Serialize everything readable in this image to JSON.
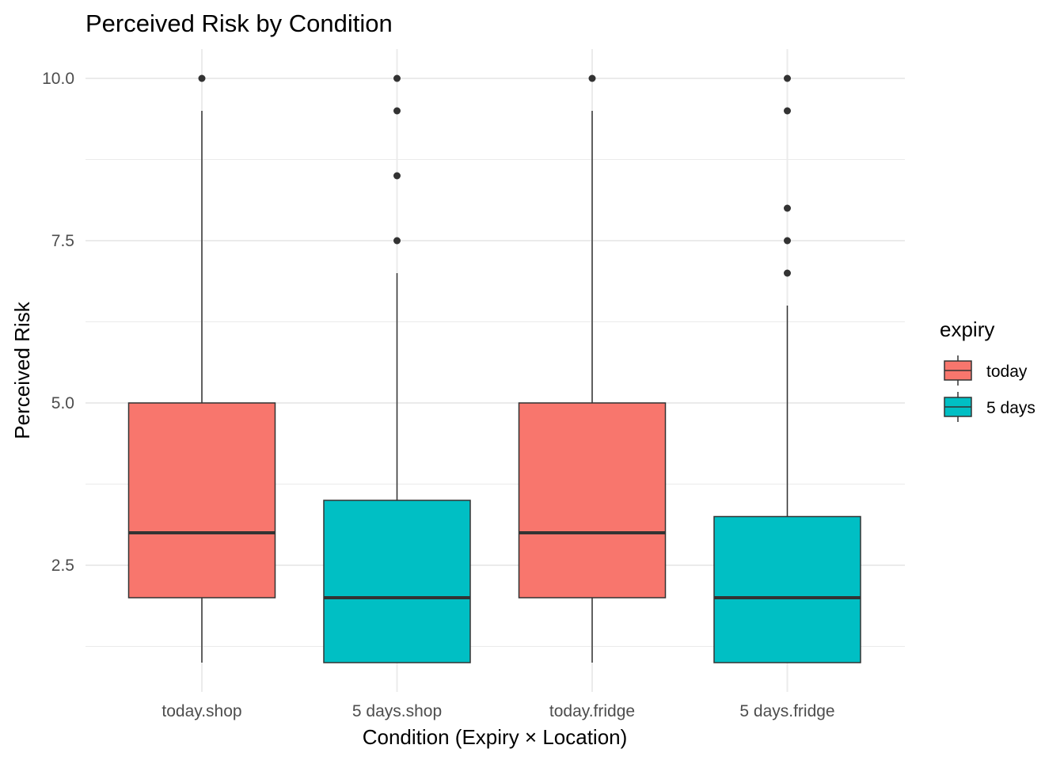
{
  "chart_data": {
    "type": "boxplot",
    "title": "Perceived Risk by Condition",
    "xlabel": "Condition (Expiry × Location)",
    "ylabel": "Perceived Risk",
    "ylim": [
      0.8,
      10.45
    ],
    "yticks": [
      2.5,
      5.0,
      7.5,
      10.0
    ],
    "ytick_labels": [
      "2.5",
      "5.0",
      "7.5",
      "10.0"
    ],
    "y_minor_gridlines": [
      1.25,
      3.75,
      6.25,
      8.75
    ],
    "grid": true,
    "legend": {
      "title": "expiry",
      "placement": "right",
      "entries": [
        {
          "label": "today",
          "color": "#F8766D"
        },
        {
          "label": "5 days",
          "color": "#00BFC4"
        }
      ]
    },
    "categories": [
      "today.shop",
      "5 days.shop",
      "today.fridge",
      "5 days.fridge"
    ],
    "boxes": [
      {
        "category": "today.shop",
        "group": "today",
        "whisker_low": 1.0,
        "q1": 2.0,
        "median": 3.0,
        "q3": 5.0,
        "whisker_high": 9.5,
        "outliers": [
          10.0
        ]
      },
      {
        "category": "5 days.shop",
        "group": "5 days",
        "whisker_low": 1.0,
        "q1": 1.0,
        "median": 2.0,
        "q3": 3.5,
        "whisker_high": 7.0,
        "outliers": [
          7.5,
          8.5,
          9.5,
          10.0
        ]
      },
      {
        "category": "today.fridge",
        "group": "today",
        "whisker_low": 1.0,
        "q1": 2.0,
        "median": 3.0,
        "q3": 5.0,
        "whisker_high": 9.5,
        "outliers": [
          10.0
        ]
      },
      {
        "category": "5 days.fridge",
        "group": "5 days",
        "whisker_low": 1.0,
        "q1": 1.0,
        "median": 2.0,
        "q3": 3.25,
        "whisker_high": 6.5,
        "outliers": [
          7.0,
          7.5,
          8.0,
          9.5,
          10.0
        ]
      }
    ],
    "colors": {
      "today": "#F8766D",
      "5 days": "#00BFC4",
      "outline": "#333333",
      "grid": "#EBEBEB"
    }
  }
}
